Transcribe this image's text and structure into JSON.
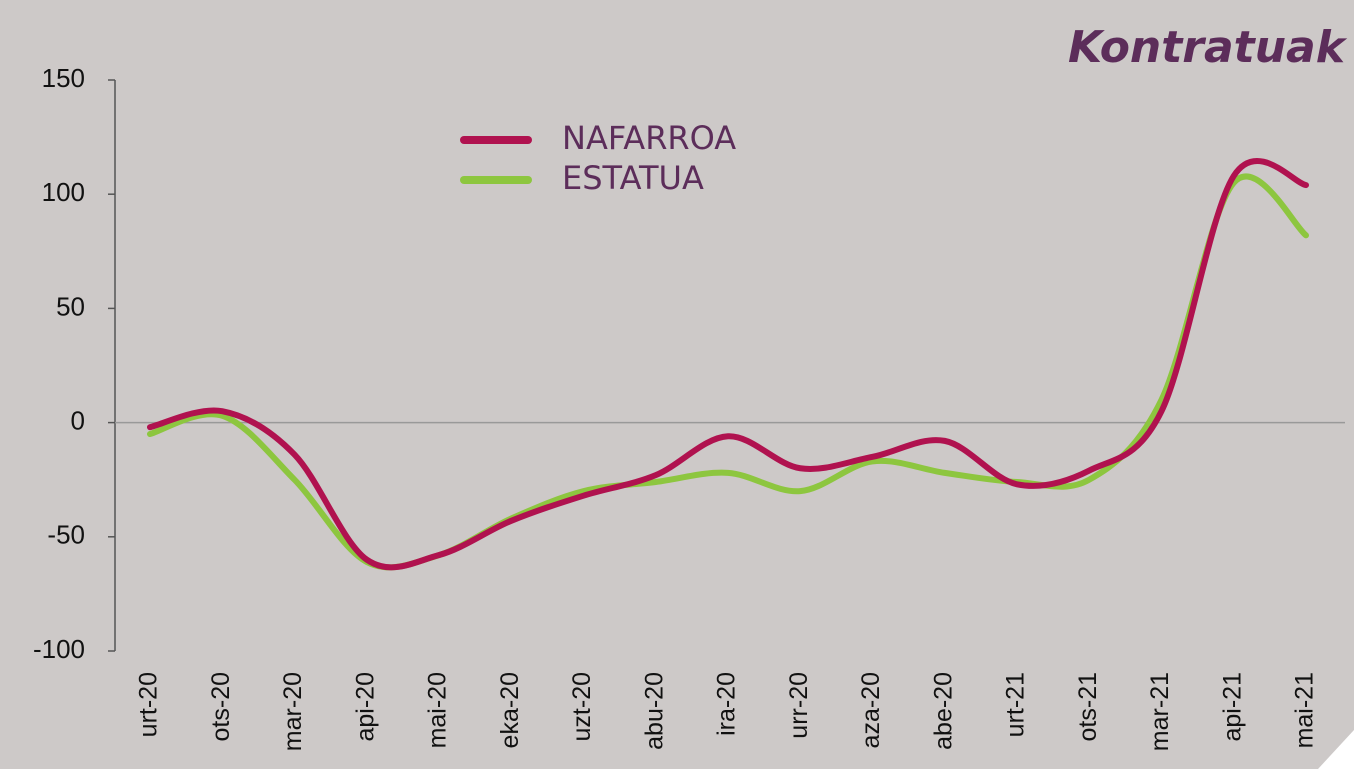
{
  "chart_data": {
    "type": "line",
    "title": "Kontratuak",
    "categories": [
      "urt-20",
      "ots-20",
      "mar-20",
      "api-20",
      "mai-20",
      "eka-20",
      "uzt-20",
      "abu-20",
      "ira-20",
      "urr-20",
      "aza-20",
      "abe-20",
      "urt-21",
      "ots-21",
      "mar-21",
      "api-21",
      "mai-21"
    ],
    "series": [
      {
        "name": "NAFARROA",
        "color": "#b0124f",
        "values": [
          -2,
          5,
          -14,
          -60,
          -58,
          -43,
          -32,
          -23,
          -6,
          -20,
          -15,
          -8,
          -27,
          -21,
          5,
          108,
          104
        ]
      },
      {
        "name": "ESTATUA",
        "color": "#8dc63f",
        "values": [
          -5,
          3,
          -25,
          -61,
          -58,
          -42,
          -30,
          -26,
          -22,
          -30,
          -17,
          -22,
          -26,
          -25,
          10,
          105,
          82
        ]
      }
    ],
    "ylim": [
      -100,
      150
    ],
    "yticks": [
      -100,
      -50,
      0,
      50,
      100,
      150
    ],
    "legend": "top-center"
  }
}
